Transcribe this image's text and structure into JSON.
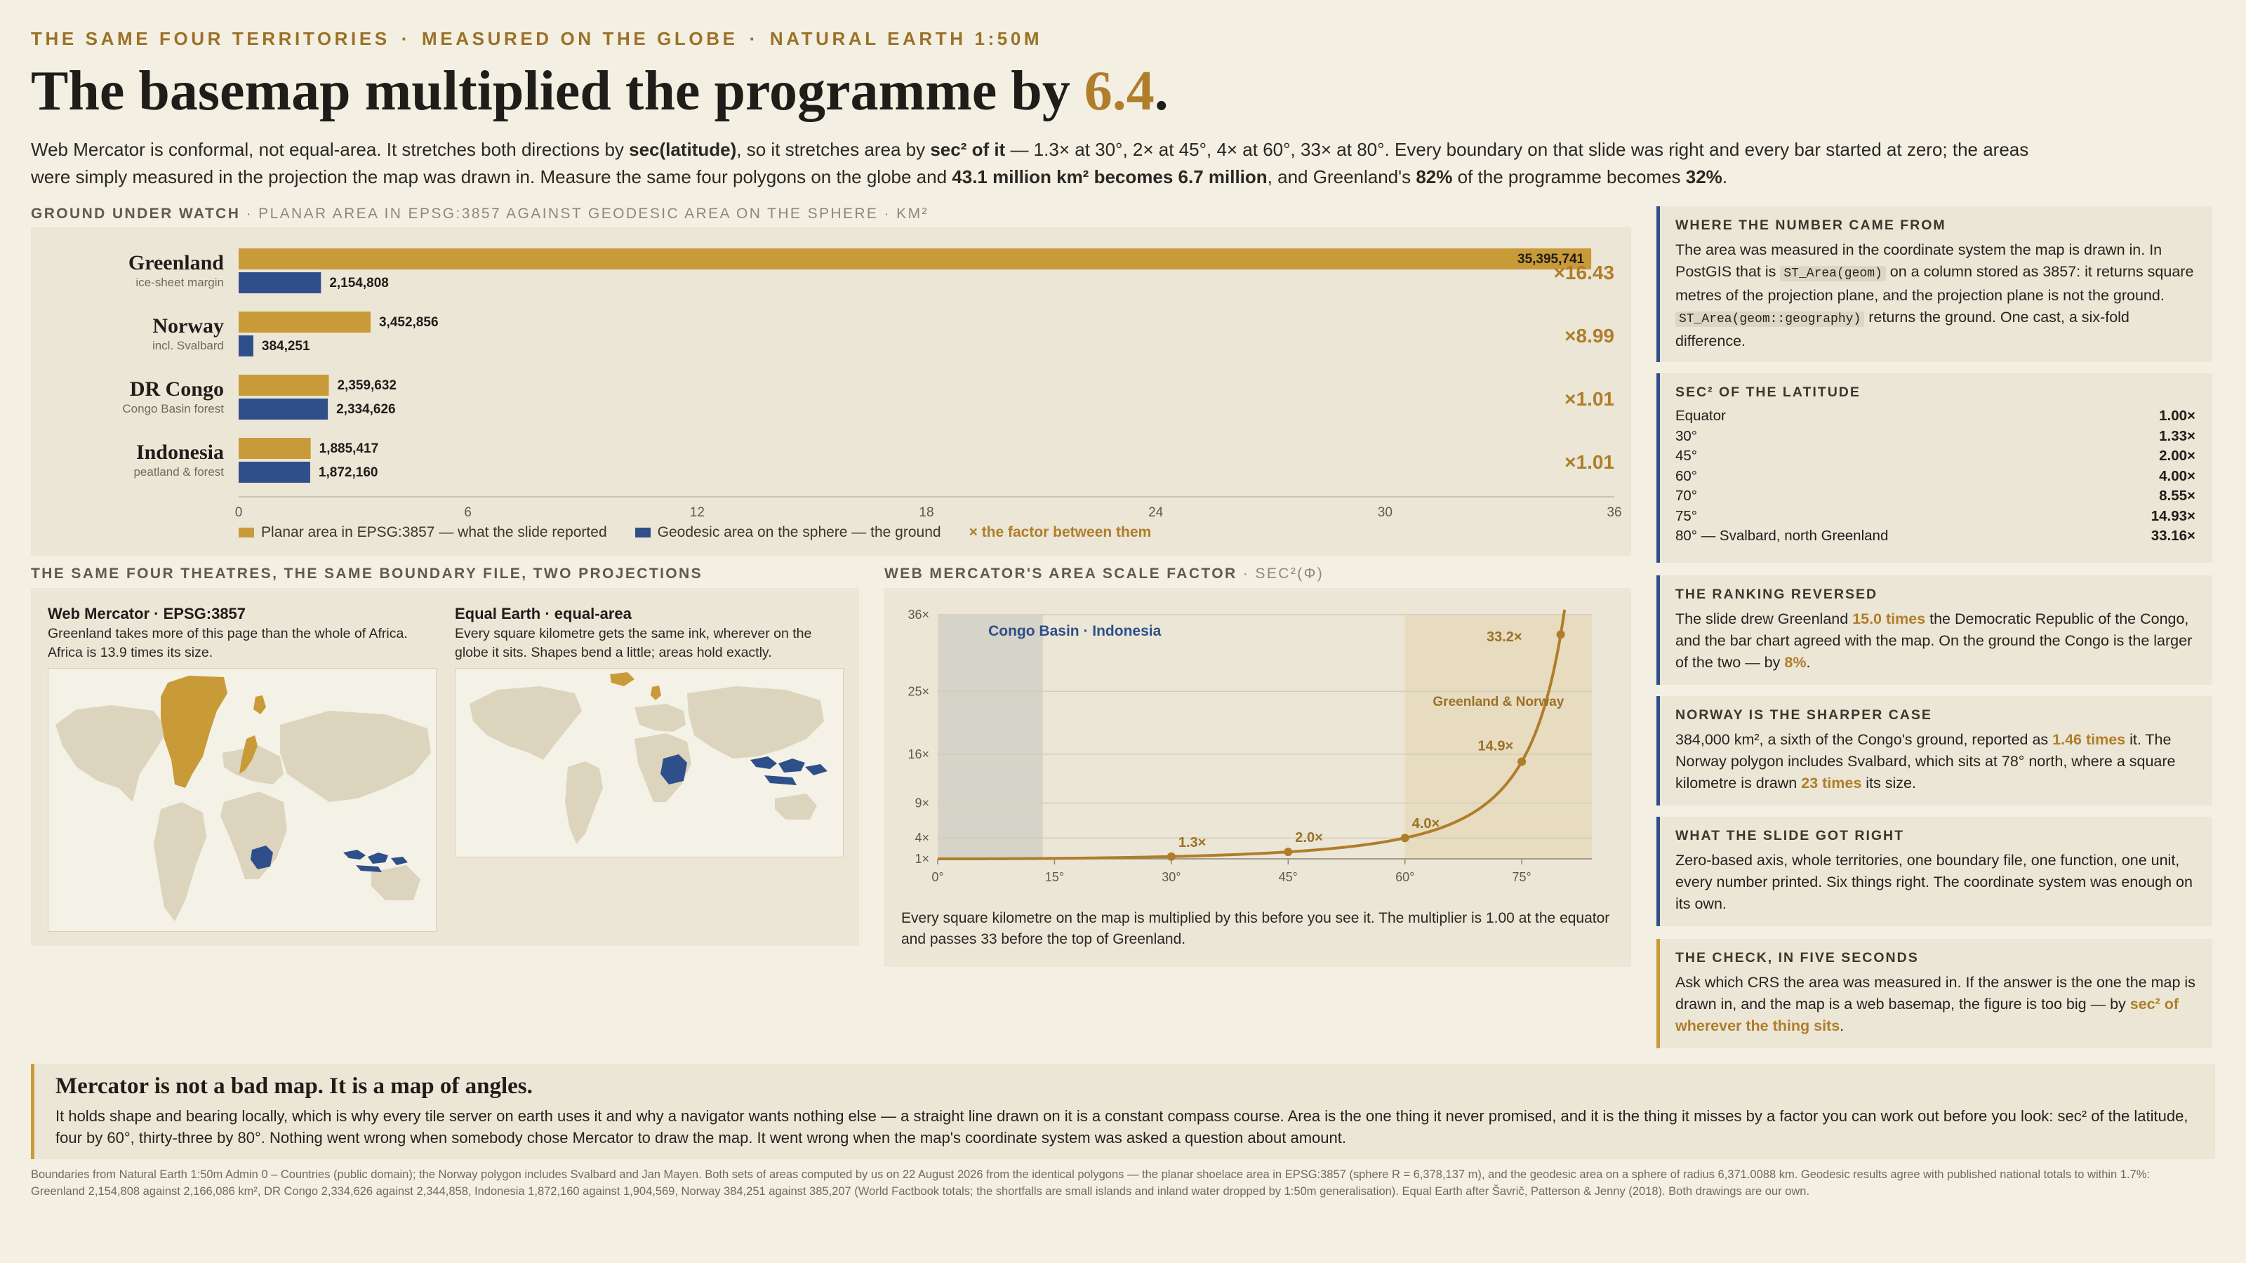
{
  "kicker": [
    "THE SAME FOUR TERRITORIES",
    "MEASURED ON THE GLOBE",
    "NATURAL EARTH 1:50M"
  ],
  "kicker_sep": "·",
  "headline": {
    "pre": "The basemap multiplied the programme by ",
    "num": "6.4",
    "post": "."
  },
  "lede": [
    {
      "t": "Web Mercator is conformal, not equal-area. It stretches both directions by ",
      "b": false
    },
    {
      "t": "sec(latitude)",
      "b": true
    },
    {
      "t": ", so it stretches area by ",
      "b": false
    },
    {
      "t": "sec² of it",
      "b": true
    },
    {
      "t": " — 1.3× at 30°, 2× at 45°, 4× at 60°, 33× at 80°. Every boundary on that slide was right and every bar started at zero; the areas were simply measured in the projection the map was drawn in. Measure the same four polygons on the globe and ",
      "b": false
    },
    {
      "t": "43.1 million km² becomes 6.7 million",
      "b": true
    },
    {
      "t": ", and Greenland's ",
      "b": false
    },
    {
      "t": "82%",
      "b": true
    },
    {
      "t": " of the programme becomes ",
      "b": false
    },
    {
      "t": "32%",
      "b": true
    },
    {
      "t": ".",
      "b": false
    }
  ],
  "bar_section": {
    "title": "GROUND UNDER WATCH",
    "subtitle": " · PLANAR AREA IN EPSG:3857 AGAINST GEODESIC AREA ON THE SPHERE · KM²"
  },
  "chart_data": [
    {
      "type": "bar",
      "orientation": "horizontal",
      "title": "GROUND UNDER WATCH",
      "categories": [
        "Greenland",
        "Norway",
        "DR Congo",
        "Indonesia"
      ],
      "category_notes": [
        "ice-sheet margin",
        "incl. Svalbard",
        "Congo Basin forest",
        "peatland & forest"
      ],
      "series": [
        {
          "name": "Planar area in EPSG:3857 — what the slide reported",
          "color": "#c99a38",
          "values": [
            35395741,
            3452856,
            2359632,
            1885417
          ],
          "labels": [
            "35,395,741",
            "3,452,856",
            "2,359,632",
            "1,885,417"
          ]
        },
        {
          "name": "Geodesic area on the sphere — the ground",
          "color": "#2f4f8a",
          "values": [
            2154808,
            384251,
            2334626,
            1872160
          ],
          "labels": [
            "2,154,808",
            "384,251",
            "2,334,626",
            "1,872,160"
          ]
        }
      ],
      "factors": [
        "×16.43",
        "×8.99",
        "×1.01",
        "×1.01"
      ],
      "factor_legend": "× the factor between them",
      "xlim": [
        0,
        36000000
      ],
      "xticks": [
        0,
        6,
        12,
        18,
        24,
        30,
        36
      ],
      "tick_unit": 1000000,
      "legend": "bottom"
    },
    {
      "type": "line",
      "title": "WEB MERCATOR'S AREA SCALE FACTOR",
      "subtitle": " · SEC²(Φ)",
      "x_ticks": [
        "0°",
        "15°",
        "30°",
        "45°",
        "60°",
        "75°"
      ],
      "x_tick_values": [
        0,
        15,
        30,
        45,
        60,
        75
      ],
      "y_ticks": [
        "1×",
        "4×",
        "9×",
        "16×",
        "25×",
        "36×"
      ],
      "y_tick_values": [
        1,
        4,
        9,
        16,
        25,
        36
      ],
      "xlim": [
        0,
        84
      ],
      "ylim": [
        0,
        36
      ],
      "series": [
        {
          "function": "sec^2(latitude)",
          "x_range": [
            0,
            80.5
          ],
          "color": "#b07d2a"
        }
      ],
      "points": [
        {
          "x": 30,
          "y": 1.33,
          "label": "1.3×"
        },
        {
          "x": 45,
          "y": 2.0,
          "label": "2.0×"
        },
        {
          "x": 60,
          "y": 4.0,
          "label": "4.0×"
        },
        {
          "x": 75,
          "y": 14.93,
          "label": "14.9×"
        },
        {
          "x": 80,
          "y": 33.16,
          "label": "33.2×"
        }
      ],
      "bands": [
        {
          "label": "Congo Basin · Indonesia",
          "x0": 0,
          "x1": 13.5,
          "color": "#d6d3c9",
          "label_color": "#2f4f8a"
        },
        {
          "label": "Greenland & Norway",
          "x0": 60,
          "x1": 84,
          "color": "#e7dcbf",
          "label_color": "#9b7128"
        }
      ],
      "caption": "Every square kilometre on the map is multiplied by this before you see it. The multiplier is 1.00 at the equator and passes 33 before the top of Greenland."
    }
  ],
  "maps": {
    "section_title": "THE SAME FOUR THEATRES, THE SAME BOUNDARY FILE, TWO PROJECTIONS",
    "mercator": {
      "title": "Web Mercator · EPSG:3857",
      "desc": "Greenland takes more of this page than the whole of Africa. Africa is 13.9 times its size."
    },
    "equal": {
      "title": "Equal Earth · equal-area",
      "desc": "Every square kilometre gets the same ink, wherever on the globe it sits. Shapes bend a little; areas hold exactly."
    },
    "land_color": "#ddd4bd",
    "gold": "#c99a38",
    "blue": "#2f4f8a"
  },
  "sidebar": {
    "origin": {
      "title": "WHERE THE NUMBER CAME FROM",
      "p1": "The area was measured in the coordinate system the map is drawn in. In PostGIS that is ",
      "c1": "ST_Area(geom)",
      "p2": " on a column stored as 3857: it returns square metres of the projection plane, and the projection plane is not the ground. ",
      "c2": "ST_Area(geom::geography)",
      "p3": " returns the ground. One cast, a six-fold difference."
    },
    "sec": {
      "title": "SEC² OF THE LATITUDE",
      "rows": [
        [
          "Equator",
          "1.00×"
        ],
        [
          "30°",
          "1.33×"
        ],
        [
          "45°",
          "2.00×"
        ],
        [
          "60°",
          "4.00×"
        ],
        [
          "70°",
          "8.55×"
        ],
        [
          "75°",
          "14.93×"
        ],
        [
          "80° — Svalbard, north Greenland",
          "33.16×"
        ]
      ]
    },
    "ranking": {
      "title": "THE RANKING REVERSED",
      "p1": "The slide drew Greenland ",
      "h1": "15.0 times",
      "p2": " the Democratic Republic of the Congo, and the bar chart agreed with the map. On the ground the Congo is the larger of the two — by ",
      "h2": "8%",
      "p3": "."
    },
    "norway": {
      "title": "NORWAY IS THE SHARPER CASE",
      "p1": "384,000 km², a sixth of the Congo's ground, reported as ",
      "h1": "1.46 times",
      "p2": " it. The Norway polygon includes Svalbard, which sits at 78° north, where a square kilometre is drawn ",
      "h2": "23 times",
      "p3": " its size."
    },
    "right": {
      "title": "WHAT THE SLIDE GOT RIGHT",
      "p": "Zero-based axis, whole territories, one boundary file, one function, one unit, every number printed. Six things right. The coordinate system was enough on its own."
    },
    "check": {
      "title": "THE CHECK, IN FIVE SECONDS",
      "p1": "Ask which CRS the area was measured in. If the answer is the one the map is drawn in, and the map is a web basemap, the figure is too big — by ",
      "h1": "sec² of wherever the thing sits",
      "p2": "."
    }
  },
  "conclusion": {
    "title": "Mercator is not a bad map. It is a map of angles.",
    "body": "It holds shape and bearing locally, which is why every tile server on earth uses it and why a navigator wants nothing else — a straight line drawn on it is a constant compass course. Area is the one thing it never promised, and it is the thing it misses by a factor you can work out before you look: sec² of the latitude, four by 60°, thirty-three by 80°. Nothing went wrong when somebody chose Mercator to draw the map. It went wrong when the map's coordinate system was asked a question about amount."
  },
  "footnote": "Boundaries from Natural Earth 1:50m Admin 0 – Countries (public domain); the Norway polygon includes Svalbard and Jan Mayen. Both sets of areas computed by us on 22 August 2026 from the identical polygons — the planar shoelace area in EPSG:3857 (sphere R = 6,378,137 m), and the geodesic area on a sphere of radius 6,371.0088 km. Geodesic results agree with published national totals to within 1.7%: Greenland 2,154,808 against 2,166,086 km², DR Congo 2,334,626 against 2,344,858, Indonesia 1,872,160 against 1,904,569, Norway 384,251 against 385,207 (World Factbook totals; the shortfalls are small islands and inland water dropped by 1:50m generalisation). Equal Earth after Šavrič, Patterson & Jenny (2018). Both drawings are our own."
}
